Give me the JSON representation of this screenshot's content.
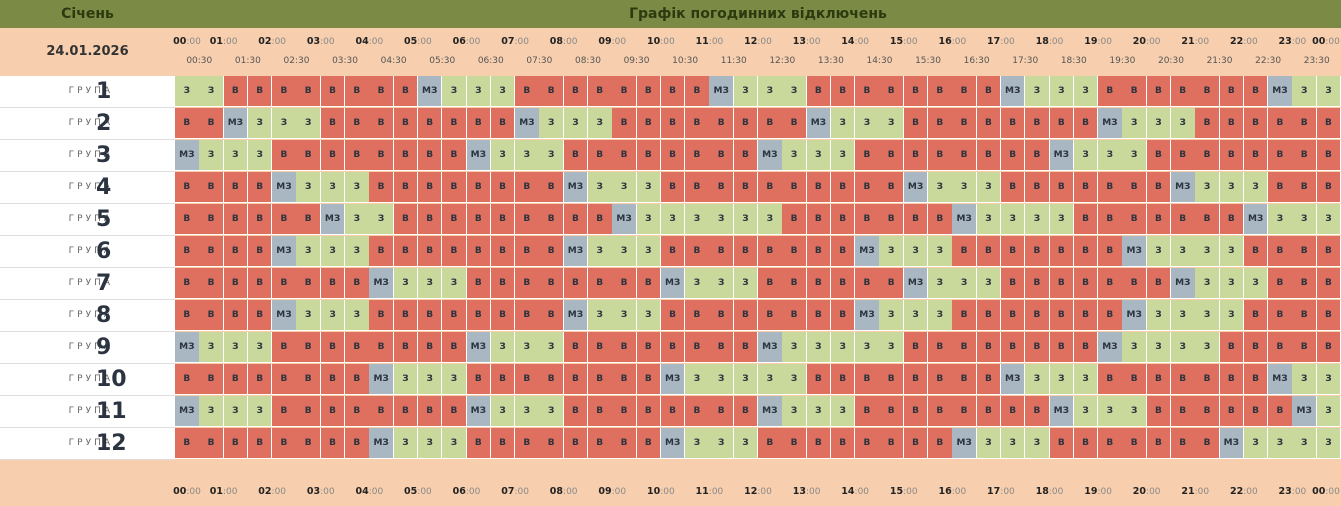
{
  "header": {
    "month": "Січень",
    "title": "Графік погодинних відключень",
    "date": "24.01.2026"
  },
  "hours": [
    {
      "h": "00",
      "m": ":00"
    },
    {
      "h": "01",
      "m": ":00"
    },
    {
      "h": "02",
      "m": ":00"
    },
    {
      "h": "03",
      "m": ":00"
    },
    {
      "h": "04",
      "m": ":00"
    },
    {
      "h": "05",
      "m": ":00"
    },
    {
      "h": "06",
      "m": ":00"
    },
    {
      "h": "07",
      "m": ":00"
    },
    {
      "h": "08",
      "m": ":00"
    },
    {
      "h": "09",
      "m": ":00"
    },
    {
      "h": "10",
      "m": ":00"
    },
    {
      "h": "11",
      "m": ":00"
    },
    {
      "h": "12",
      "m": ":00"
    },
    {
      "h": "13",
      "m": ":00"
    },
    {
      "h": "14",
      "m": ":00"
    },
    {
      "h": "15",
      "m": ":00"
    },
    {
      "h": "16",
      "m": ":00"
    },
    {
      "h": "17",
      "m": ":00"
    },
    {
      "h": "18",
      "m": ":00"
    },
    {
      "h": "19",
      "m": ":00"
    },
    {
      "h": "20",
      "m": ":00"
    },
    {
      "h": "21",
      "m": ":00"
    },
    {
      "h": "22",
      "m": ":00"
    },
    {
      "h": "23",
      "m": ":00"
    },
    {
      "h": "00",
      "m": ":00"
    }
  ],
  "half_hours": [
    "00:30",
    "01:30",
    "02:30",
    "03:30",
    "04:30",
    "05:30",
    "06:30",
    "07:30",
    "08:30",
    "09:30",
    "10:30",
    "11:30",
    "12:30",
    "13:30",
    "14:30",
    "15:30",
    "16:30",
    "17:30",
    "18:30",
    "19:30",
    "20:30",
    "21:30",
    "22:30",
    "23:30"
  ],
  "group_label": "ГРУПА",
  "groups": [
    {
      "number": "1",
      "cells": [
        "З",
        "З",
        "В",
        "В",
        "В",
        "В",
        "В",
        "В",
        "В",
        "В",
        "МЗ",
        "З",
        "З",
        "З",
        "В",
        "В",
        "В",
        "В",
        "В",
        "В",
        "В",
        "В",
        "МЗ",
        "З",
        "З",
        "З",
        "В",
        "В",
        "В",
        "В",
        "В",
        "В",
        "В",
        "В",
        "МЗ",
        "З",
        "З",
        "З",
        "В",
        "В",
        "В",
        "В",
        "В",
        "В",
        "В",
        "МЗ",
        "З",
        "З"
      ]
    },
    {
      "number": "2",
      "cells": [
        "В",
        "В",
        "МЗ",
        "З",
        "З",
        "З",
        "В",
        "В",
        "В",
        "В",
        "В",
        "В",
        "В",
        "В",
        "МЗ",
        "З",
        "З",
        "З",
        "В",
        "В",
        "В",
        "В",
        "В",
        "В",
        "В",
        "В",
        "МЗ",
        "З",
        "З",
        "З",
        "В",
        "В",
        "В",
        "В",
        "В",
        "В",
        "В",
        "В",
        "МЗ",
        "З",
        "З",
        "З",
        "В",
        "В",
        "В",
        "В",
        "В",
        "В"
      ]
    },
    {
      "number": "3",
      "cells": [
        "МЗ",
        "З",
        "З",
        "З",
        "В",
        "В",
        "В",
        "В",
        "В",
        "В",
        "В",
        "В",
        "МЗ",
        "З",
        "З",
        "З",
        "В",
        "В",
        "В",
        "В",
        "В",
        "В",
        "В",
        "В",
        "МЗ",
        "З",
        "З",
        "З",
        "В",
        "В",
        "В",
        "В",
        "В",
        "В",
        "В",
        "В",
        "МЗ",
        "З",
        "З",
        "З",
        "В",
        "В",
        "В",
        "В",
        "В",
        "В",
        "В",
        "В"
      ]
    },
    {
      "number": "4",
      "cells": [
        "В",
        "В",
        "В",
        "В",
        "МЗ",
        "З",
        "З",
        "З",
        "В",
        "В",
        "В",
        "В",
        "В",
        "В",
        "В",
        "В",
        "МЗ",
        "З",
        "З",
        "З",
        "В",
        "В",
        "В",
        "В",
        "В",
        "В",
        "В",
        "В",
        "В",
        "В",
        "МЗ",
        "З",
        "З",
        "З",
        "В",
        "В",
        "В",
        "В",
        "В",
        "В",
        "В",
        "МЗ",
        "З",
        "З",
        "З",
        "В",
        "В",
        "В"
      ]
    },
    {
      "number": "5",
      "cells": [
        "В",
        "В",
        "В",
        "В",
        "В",
        "В",
        "МЗ",
        "З",
        "З",
        "В",
        "В",
        "В",
        "В",
        "В",
        "В",
        "В",
        "В",
        "В",
        "МЗ",
        "З",
        "З",
        "З",
        "З",
        "З",
        "З",
        "В",
        "В",
        "В",
        "В",
        "В",
        "В",
        "В",
        "МЗ",
        "З",
        "З",
        "З",
        "З",
        "В",
        "В",
        "В",
        "В",
        "В",
        "В",
        "В",
        "МЗ",
        "З",
        "З",
        "З"
      ]
    },
    {
      "number": "6",
      "cells": [
        "В",
        "В",
        "В",
        "В",
        "МЗ",
        "З",
        "З",
        "З",
        "В",
        "В",
        "В",
        "В",
        "В",
        "В",
        "В",
        "В",
        "МЗ",
        "З",
        "З",
        "З",
        "В",
        "В",
        "В",
        "В",
        "В",
        "В",
        "В",
        "В",
        "МЗ",
        "З",
        "З",
        "З",
        "В",
        "В",
        "В",
        "В",
        "В",
        "В",
        "В",
        "МЗ",
        "З",
        "З",
        "З",
        "З",
        "В",
        "В",
        "В",
        "В"
      ]
    },
    {
      "number": "7",
      "cells": [
        "В",
        "В",
        "В",
        "В",
        "В",
        "В",
        "В",
        "В",
        "МЗ",
        "З",
        "З",
        "З",
        "В",
        "В",
        "В",
        "В",
        "В",
        "В",
        "В",
        "В",
        "МЗ",
        "З",
        "З",
        "З",
        "В",
        "В",
        "В",
        "В",
        "В",
        "В",
        "МЗ",
        "З",
        "З",
        "З",
        "В",
        "В",
        "В",
        "В",
        "В",
        "В",
        "В",
        "МЗ",
        "З",
        "З",
        "З",
        "В",
        "В",
        "В"
      ]
    },
    {
      "number": "8",
      "cells": [
        "В",
        "В",
        "В",
        "В",
        "МЗ",
        "З",
        "З",
        "З",
        "В",
        "В",
        "В",
        "В",
        "В",
        "В",
        "В",
        "В",
        "МЗ",
        "З",
        "З",
        "З",
        "В",
        "В",
        "В",
        "В",
        "В",
        "В",
        "В",
        "В",
        "МЗ",
        "З",
        "З",
        "З",
        "В",
        "В",
        "В",
        "В",
        "В",
        "В",
        "В",
        "МЗ",
        "З",
        "З",
        "З",
        "З",
        "В",
        "В",
        "В",
        "В"
      ]
    },
    {
      "number": "9",
      "cells": [
        "МЗ",
        "З",
        "З",
        "З",
        "В",
        "В",
        "В",
        "В",
        "В",
        "В",
        "В",
        "В",
        "МЗ",
        "З",
        "З",
        "З",
        "В",
        "В",
        "В",
        "В",
        "В",
        "В",
        "В",
        "В",
        "МЗ",
        "З",
        "З",
        "З",
        "З",
        "З",
        "В",
        "В",
        "В",
        "В",
        "В",
        "В",
        "В",
        "В",
        "МЗ",
        "З",
        "З",
        "З",
        "З",
        "В",
        "В",
        "В",
        "В",
        "В"
      ]
    },
    {
      "number": "10",
      "cells": [
        "В",
        "В",
        "В",
        "В",
        "В",
        "В",
        "В",
        "В",
        "МЗ",
        "З",
        "З",
        "З",
        "В",
        "В",
        "В",
        "В",
        "В",
        "В",
        "В",
        "В",
        "МЗ",
        "З",
        "З",
        "З",
        "З",
        "З",
        "В",
        "В",
        "В",
        "В",
        "В",
        "В",
        "В",
        "В",
        "МЗ",
        "З",
        "З",
        "З",
        "В",
        "В",
        "В",
        "В",
        "В",
        "В",
        "В",
        "МЗ",
        "З",
        "З"
      ]
    },
    {
      "number": "11",
      "cells": [
        "МЗ",
        "З",
        "З",
        "З",
        "В",
        "В",
        "В",
        "В",
        "В",
        "В",
        "В",
        "В",
        "МЗ",
        "З",
        "З",
        "З",
        "В",
        "В",
        "В",
        "В",
        "В",
        "В",
        "В",
        "В",
        "МЗ",
        "З",
        "З",
        "З",
        "В",
        "В",
        "В",
        "В",
        "В",
        "В",
        "В",
        "В",
        "МЗ",
        "З",
        "З",
        "З",
        "В",
        "В",
        "В",
        "В",
        "В",
        "В",
        "МЗ",
        "З"
      ]
    },
    {
      "number": "12",
      "cells": [
        "В",
        "В",
        "В",
        "В",
        "В",
        "В",
        "В",
        "В",
        "МЗ",
        "З",
        "З",
        "З",
        "В",
        "В",
        "В",
        "В",
        "В",
        "В",
        "В",
        "В",
        "МЗ",
        "З",
        "З",
        "З",
        "В",
        "В",
        "В",
        "В",
        "В",
        "В",
        "В",
        "В",
        "МЗ",
        "З",
        "З",
        "З",
        "В",
        "В",
        "В",
        "В",
        "В",
        "В",
        "В",
        "МЗ",
        "З",
        "З",
        "З",
        "З"
      ]
    }
  ]
}
